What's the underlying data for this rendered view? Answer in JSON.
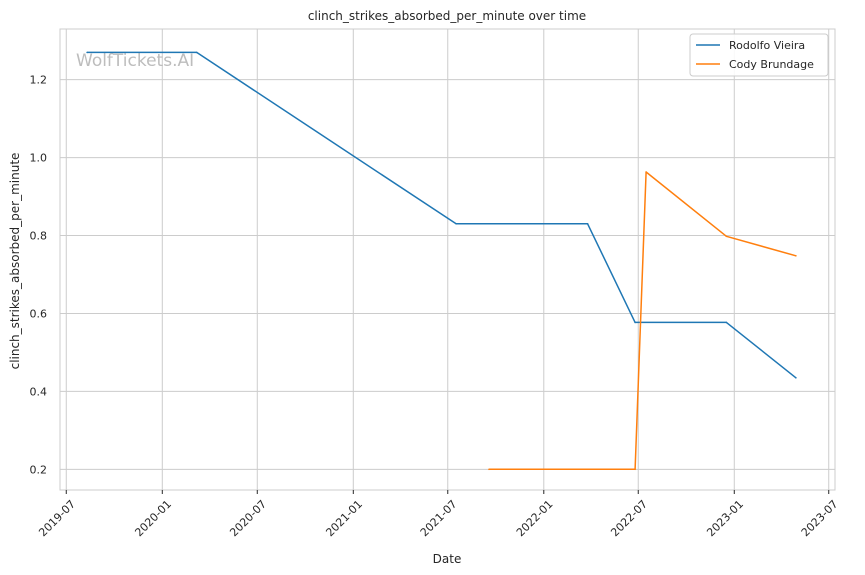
{
  "chart_data": {
    "type": "line",
    "title": "clinch_strikes_absorbed_per_minute over time",
    "xlabel": "Date",
    "ylabel": "clinch_strikes_absorbed_per_minute",
    "watermark": "WolfTickets.AI",
    "x_is_date": true,
    "xlim": [
      "2019-06-19",
      "2023-07-13"
    ],
    "ylim": [
      0.147,
      1.33
    ],
    "x_ticks": [
      "2019-07",
      "2020-01",
      "2020-07",
      "2021-01",
      "2021-07",
      "2022-01",
      "2022-07",
      "2023-01",
      "2023-07"
    ],
    "y_ticks": [
      0.2,
      0.4,
      0.6,
      0.8,
      1.0,
      1.2
    ],
    "y_tick_labels": [
      "0.2",
      "0.4",
      "0.6",
      "0.8",
      "1.0",
      "1.2"
    ],
    "grid": true,
    "legend": "top-right",
    "series": [
      {
        "name": "Rodolfo Vieira",
        "color": "#1f77b4",
        "points": [
          [
            "2019-08-10",
            1.27
          ],
          [
            "2020-03-07",
            1.27
          ],
          [
            "2021-07-17",
            0.83
          ],
          [
            "2022-03-26",
            0.83
          ],
          [
            "2022-06-25",
            0.577
          ],
          [
            "2022-12-17",
            0.577
          ],
          [
            "2023-04-29",
            0.435
          ]
        ]
      },
      {
        "name": "Cody Brundage",
        "color": "#ff7f0e",
        "points": [
          [
            "2021-09-18",
            0.2
          ],
          [
            "2022-06-25",
            0.2
          ],
          [
            "2022-07-16",
            0.963
          ],
          [
            "2022-12-17",
            0.798
          ],
          [
            "2023-04-29",
            0.748
          ]
        ]
      }
    ]
  }
}
